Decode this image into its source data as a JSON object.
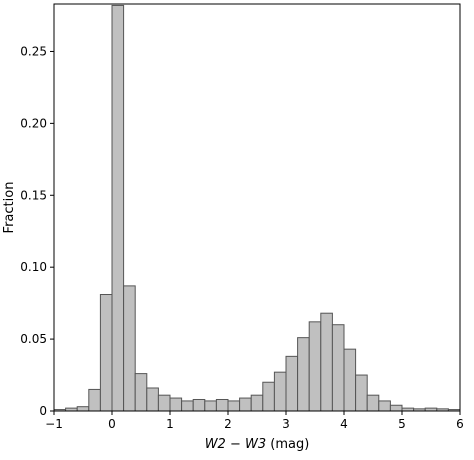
{
  "chart_data": {
    "type": "bar",
    "title": "",
    "xlabel": "W2 − W3",
    "xlabel_unit": " (mag)",
    "ylabel": "Fraction",
    "xlim": [
      -1,
      6
    ],
    "ylim": [
      0,
      0.283
    ],
    "grid": false,
    "bin_width": 0.2,
    "bin_start": -1.0,
    "values": [
      0.001,
      0.002,
      0.003,
      0.015,
      0.081,
      0.282,
      0.087,
      0.026,
      0.016,
      0.011,
      0.009,
      0.007,
      0.008,
      0.007,
      0.008,
      0.007,
      0.009,
      0.011,
      0.02,
      0.027,
      0.038,
      0.051,
      0.062,
      0.068,
      0.06,
      0.043,
      0.025,
      0.011,
      0.007,
      0.004,
      0.002,
      0.0015,
      0.002,
      0.0015,
      0.001
    ],
    "x_ticks": [
      -1,
      0,
      1,
      2,
      3,
      4,
      5,
      6
    ],
    "x_tick_labels": [
      "−1",
      "0",
      "1",
      "2",
      "3",
      "4",
      "5",
      "6"
    ],
    "y_ticks": [
      0,
      0.05,
      0.1,
      0.15,
      0.2,
      0.25
    ],
    "y_tick_labels": [
      "0",
      "0.05",
      "0.10",
      "0.15",
      "0.20",
      "0.25"
    ]
  }
}
